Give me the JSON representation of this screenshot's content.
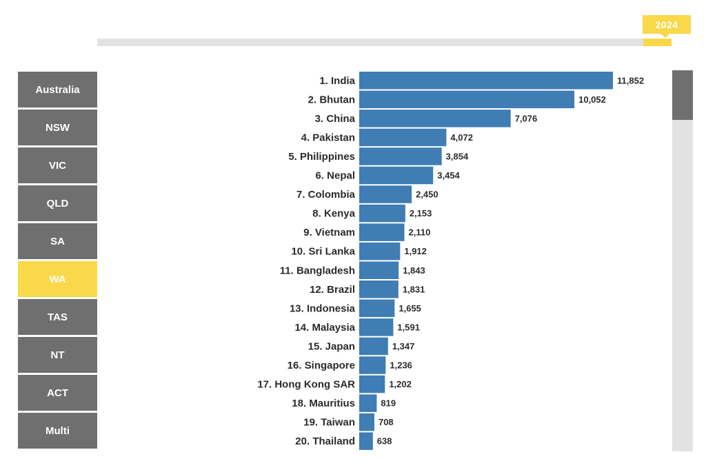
{
  "timeline": {
    "year": "2024"
  },
  "regions": [
    {
      "label": "Australia",
      "active": false
    },
    {
      "label": "NSW",
      "active": false
    },
    {
      "label": "VIC",
      "active": false
    },
    {
      "label": "QLD",
      "active": false
    },
    {
      "label": "SA",
      "active": false
    },
    {
      "label": "WA",
      "active": true
    },
    {
      "label": "TAS",
      "active": false
    },
    {
      "label": "NT",
      "active": false
    },
    {
      "label": "ACT",
      "active": false
    },
    {
      "label": "Multi",
      "active": false
    }
  ],
  "colors": {
    "bar": "#3f7db4",
    "accent": "#f9d849",
    "nav": "#6f6f6f"
  },
  "chart_data": {
    "type": "bar",
    "orientation": "horizontal",
    "categories": [
      "1. India",
      "2. Bhutan",
      "3. China",
      "4. Pakistan",
      "5. Philippines",
      "6. Nepal",
      "7. Colombia",
      "8. Kenya",
      "9. Vietnam",
      "10. Sri Lanka",
      "11. Bangladesh",
      "12. Brazil",
      "13. Indonesia",
      "14. Malaysia",
      "15. Japan",
      "16. Singapore",
      "17. Hong Kong SAR",
      "18. Mauritius",
      "19. Taiwan",
      "20. Thailand"
    ],
    "values": [
      11852,
      10052,
      7076,
      4072,
      3854,
      3454,
      2450,
      2153,
      2110,
      1912,
      1843,
      1831,
      1655,
      1591,
      1347,
      1236,
      1202,
      819,
      708,
      638
    ],
    "value_labels": [
      "11,852",
      "10,052",
      "7,076",
      "4,072",
      "3,854",
      "3,454",
      "2,450",
      "2,153",
      "2,110",
      "1,912",
      "1,843",
      "1,831",
      "1,655",
      "1,591",
      "1,347",
      "1,236",
      "1,202",
      "819",
      "708",
      "638"
    ],
    "xlim": [
      0,
      11852
    ],
    "grid": false,
    "legend": "none"
  }
}
